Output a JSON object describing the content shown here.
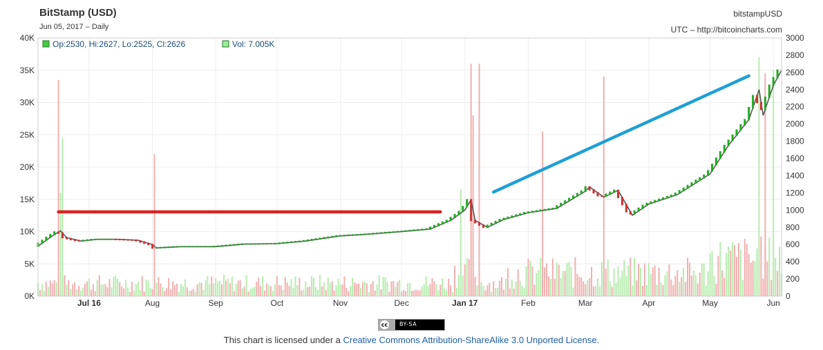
{
  "header": {
    "title": "BitStamp (USD)",
    "subtitle": "Jun 05, 2017 – Daily",
    "symbol": "bitstampUSD",
    "source": "UTC – http://bitcoincharts.com"
  },
  "legend": {
    "ohlc": "Op:2530, Hi:2627, Lo:2525, Cl:2626",
    "volume": "Vol: 7.005K"
  },
  "footer": {
    "badge": "BY-SA",
    "license_prefix": "This chart is licensed under a ",
    "license_link": "Creative Commons Attribution-ShareAlike 3.0 Unported License",
    "license_suffix": "."
  },
  "colors": {
    "up": "#22aa22",
    "down": "#cc3333",
    "volume_up": "#b8ecb0",
    "volume_down": "#f2b1b1",
    "red_line": "#dd2222",
    "blue_line": "#1e9fd6",
    "grid": "#eeeeee"
  },
  "chart_data": {
    "type": "line",
    "title": "BitStamp (USD)",
    "left_axis": {
      "ylim": [
        0,
        40000
      ],
      "ticks": [
        "0K",
        "5K",
        "10K",
        "15K",
        "20K",
        "25K",
        "30K",
        "35K",
        "40K"
      ],
      "series": "Volume"
    },
    "right_axis": {
      "ylim": [
        0,
        3000
      ],
      "ticks": [
        "0",
        "200",
        "400",
        "600",
        "800",
        "1000",
        "1200",
        "1400",
        "1600",
        "1800",
        "2000",
        "2200",
        "2400",
        "2600",
        "2800",
        "3000"
      ],
      "series": "Price"
    },
    "x_tick_labels": [
      {
        "label": "Jul 16",
        "date": "2016-07-01",
        "bold": true
      },
      {
        "label": "Aug",
        "date": "2016-08-01",
        "bold": false
      },
      {
        "label": "Sep",
        "date": "2016-09-01",
        "bold": false
      },
      {
        "label": "Oct",
        "date": "2016-10-01",
        "bold": false
      },
      {
        "label": "Nov",
        "date": "2016-11-01",
        "bold": false
      },
      {
        "label": "Dec",
        "date": "2016-12-01",
        "bold": false
      },
      {
        "label": "Jan 17",
        "date": "2017-01-01",
        "bold": true
      },
      {
        "label": "Feb",
        "date": "2017-02-01",
        "bold": false
      },
      {
        "label": "Mar",
        "date": "2017-03-01",
        "bold": false
      },
      {
        "label": "Apr",
        "date": "2017-04-01",
        "bold": false
      },
      {
        "label": "May",
        "date": "2017-05-01",
        "bold": false
      },
      {
        "label": "Jun",
        "date": "2017-06-01",
        "bold": false
      }
    ],
    "x_range": [
      "2016-06-06",
      "2017-06-05"
    ],
    "grid": true,
    "price_series": [
      {
        "x": "2016-06-06",
        "y": 580
      },
      {
        "x": "2016-06-13",
        "y": 700
      },
      {
        "x": "2016-06-17",
        "y": 760
      },
      {
        "x": "2016-06-20",
        "y": 680
      },
      {
        "x": "2016-06-27",
        "y": 640
      },
      {
        "x": "2016-07-05",
        "y": 660
      },
      {
        "x": "2016-07-15",
        "y": 660
      },
      {
        "x": "2016-07-25",
        "y": 650
      },
      {
        "x": "2016-08-01",
        "y": 600
      },
      {
        "x": "2016-08-03",
        "y": 560
      },
      {
        "x": "2016-08-15",
        "y": 575
      },
      {
        "x": "2016-09-01",
        "y": 575
      },
      {
        "x": "2016-09-15",
        "y": 605
      },
      {
        "x": "2016-10-01",
        "y": 610
      },
      {
        "x": "2016-10-15",
        "y": 640
      },
      {
        "x": "2016-11-01",
        "y": 700
      },
      {
        "x": "2016-11-15",
        "y": 720
      },
      {
        "x": "2016-12-01",
        "y": 750
      },
      {
        "x": "2016-12-15",
        "y": 780
      },
      {
        "x": "2016-12-25",
        "y": 880
      },
      {
        "x": "2017-01-01",
        "y": 1000
      },
      {
        "x": "2017-01-04",
        "y": 1120
      },
      {
        "x": "2017-01-06",
        "y": 880
      },
      {
        "x": "2017-01-12",
        "y": 800
      },
      {
        "x": "2017-01-20",
        "y": 890
      },
      {
        "x": "2017-02-01",
        "y": 970
      },
      {
        "x": "2017-02-15",
        "y": 1020
      },
      {
        "x": "2017-03-01",
        "y": 1220
      },
      {
        "x": "2017-03-03",
        "y": 1270
      },
      {
        "x": "2017-03-10",
        "y": 1150
      },
      {
        "x": "2017-03-17",
        "y": 1230
      },
      {
        "x": "2017-03-24",
        "y": 940
      },
      {
        "x": "2017-04-01",
        "y": 1070
      },
      {
        "x": "2017-04-15",
        "y": 1180
      },
      {
        "x": "2017-05-01",
        "y": 1420
      },
      {
        "x": "2017-05-10",
        "y": 1750
      },
      {
        "x": "2017-05-20",
        "y": 2050
      },
      {
        "x": "2017-05-25",
        "y": 2400
      },
      {
        "x": "2017-05-27",
        "y": 2100
      },
      {
        "x": "2017-06-01",
        "y": 2450
      },
      {
        "x": "2017-06-05",
        "y": 2626
      }
    ],
    "volume_spikes": [
      {
        "x": "2016-06-16",
        "y": 33500,
        "direction": "down"
      },
      {
        "x": "2016-06-17",
        "y": 16000,
        "direction": "up"
      },
      {
        "x": "2016-06-18",
        "y": 24500,
        "direction": "up"
      },
      {
        "x": "2016-08-02",
        "y": 22000,
        "direction": "down"
      },
      {
        "x": "2016-12-30",
        "y": 16500,
        "direction": "up"
      },
      {
        "x": "2017-01-04",
        "y": 36000,
        "direction": "down"
      },
      {
        "x": "2017-01-05",
        "y": 28000,
        "direction": "down"
      },
      {
        "x": "2017-01-08",
        "y": 36000,
        "direction": "down"
      },
      {
        "x": "2017-02-08",
        "y": 25500,
        "direction": "down"
      },
      {
        "x": "2017-03-10",
        "y": 34000,
        "direction": "down"
      },
      {
        "x": "2017-05-25",
        "y": 37000,
        "direction": "up"
      },
      {
        "x": "2017-05-28",
        "y": 34500,
        "direction": "down"
      },
      {
        "x": "2017-06-01",
        "y": 35000,
        "direction": "up"
      }
    ],
    "annotations": [
      {
        "type": "line",
        "color": "red",
        "from": {
          "x": "2016-06-16",
          "y": 980
        },
        "to": {
          "x": "2016-12-20",
          "y": 980
        }
      },
      {
        "type": "line",
        "color": "blue",
        "from": {
          "x": "2017-01-15",
          "y": 1210
        },
        "to": {
          "x": "2017-05-20",
          "y": 2560
        }
      }
    ]
  }
}
